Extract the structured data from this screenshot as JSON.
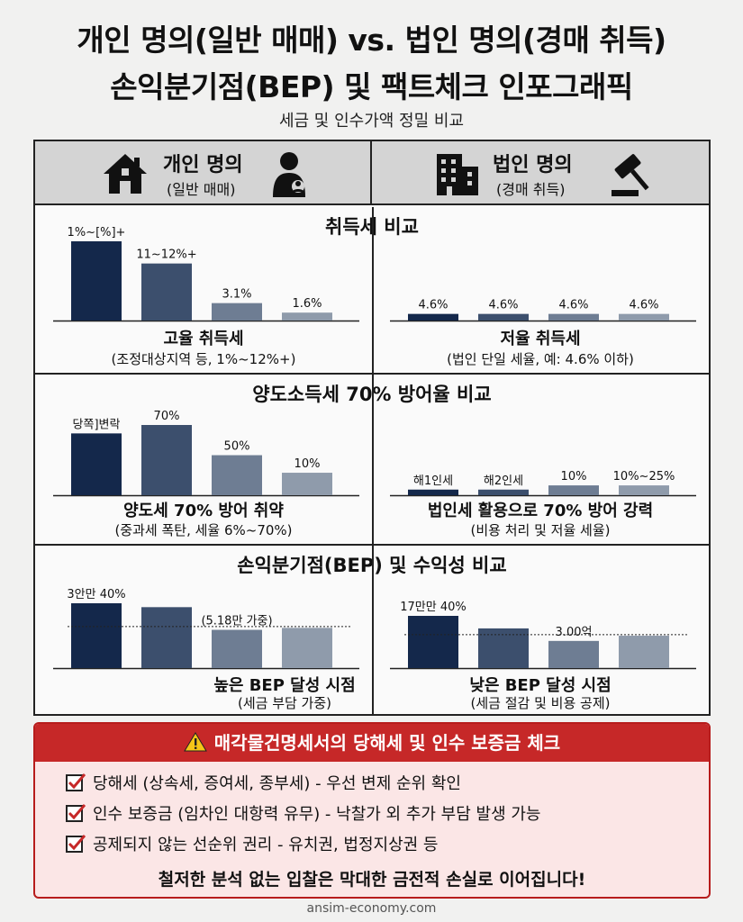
{
  "header": {
    "title_line1": "개인 명의(일반 매매) vs. 법인 명의(경매 취득)",
    "title_line2": "손익분기점(BEP) 및 팩트체크 인포그래픽",
    "subtitle": "세금 및 인수가액 정밀 비교"
  },
  "columns": {
    "left": {
      "title": "개인 명의",
      "sub": "(일반 매매)",
      "icons": [
        "house-icon",
        "person-icon"
      ]
    },
    "right": {
      "title": "법인 명의",
      "sub": "(경매 취득)",
      "icons": [
        "building-icon",
        "gavel-icon"
      ]
    }
  },
  "sections": {
    "acquisition": {
      "title": "취득세 비교",
      "left_caption": "고율 취득세",
      "left_note": "(조정대상지역 등, 1%~12%+)",
      "right_caption": "저율 취득세",
      "right_note": "(법인 단일 세율, 예: 4.6% 이하)"
    },
    "transfer": {
      "title": "양도소득세 70% 방어율 비교",
      "left_caption": "양도세 70% 방어 취약",
      "left_note": "(중과세 폭탄, 세율 6%~70%)",
      "right_caption": "법인세 활용으로 70% 방어 강력",
      "right_note": "(비용 처리 및 저율 세율)"
    },
    "bep": {
      "title": "손익분기점(BEP) 및 수익성 비교",
      "left_caption": "높은 BEP 달성 시점",
      "left_note": "(세금 부담 가중)",
      "right_caption": "낮은 BEP 달성 시점",
      "right_note": "(세금 절감 및 비용 공제)"
    }
  },
  "chart_data": [
    {
      "type": "bar",
      "panel": "취득세 - 개인 명의",
      "labels": [
        "1%~[%]+",
        "11~12%+",
        "3.1%",
        "1.6%"
      ],
      "values": [
        100,
        72,
        22,
        10
      ],
      "ylim": [
        0,
        100
      ]
    },
    {
      "type": "bar",
      "panel": "취득세 - 법인 명의",
      "labels": [
        "4.6%",
        "4.6%",
        "4.6%",
        "4.6%"
      ],
      "values": [
        4.6,
        4.6,
        4.6,
        4.6
      ],
      "ylim": [
        0,
        55
      ]
    },
    {
      "type": "bar",
      "panel": "양도소득세 - 개인 명의",
      "labels": [
        "당쪽]변락",
        "70%",
        "50%",
        "10%"
      ],
      "values": [
        88,
        100,
        57,
        32
      ],
      "ylim": [
        0,
        100
      ]
    },
    {
      "type": "bar",
      "panel": "양도소득세 - 법인 명의",
      "labels": [
        "해1인세",
        "해2인세",
        "10%",
        "10%~25%"
      ],
      "values": [
        8,
        8,
        14,
        14
      ],
      "ylim": [
        0,
        100
      ]
    },
    {
      "type": "bar",
      "panel": "BEP - 개인 명의",
      "labels": [
        "3안만 40%",
        "",
        "(5.18만 가중)",
        ""
      ],
      "values": [
        100,
        94,
        59,
        62
      ],
      "reference_line": 64,
      "ylim": [
        0,
        100
      ]
    },
    {
      "type": "bar",
      "panel": "BEP - 법인 명의",
      "labels": [
        "17만만 40%",
        "",
        "3.00억",
        ""
      ],
      "values": [
        100,
        76,
        52,
        62
      ],
      "reference_line": 64,
      "ylim": [
        0,
        100
      ]
    }
  ],
  "colors": [
    "#14284b",
    "#3c4f6d",
    "#6e7d93",
    "#8f9bab"
  ],
  "checklist": {
    "title": "매각물건명세서의 당해세 및 인수 보증금 체크",
    "items": [
      "당해세 (상속세, 증여세, 종부세) - 우선 변제 순위 확인",
      "인수 보증금 (임차인 대항력 유무) - 낙찰가 외 추가 부담 발생 가능",
      "공제되지 않는 선순위 권리 - 유치권, 법정지상권 등"
    ],
    "footer": "철저한 분석 없는 입찰은 막대한 금전적 손실로 이어집니다!"
  },
  "footer": {
    "site": "ansim-economy.com"
  }
}
